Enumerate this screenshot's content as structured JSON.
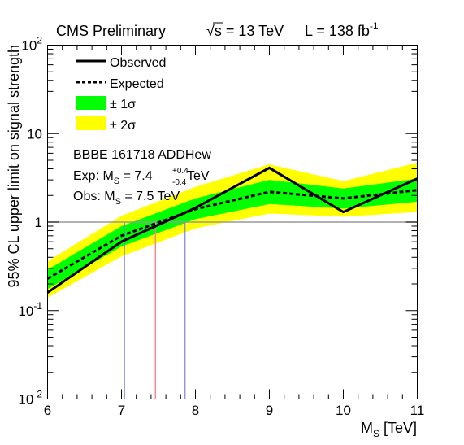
{
  "header": {
    "experiment": "CMS Preliminary",
    "energy_sqrt": "s",
    "energy_rest": " = 13 TeV",
    "lumi_prefix": "L = 138 fb",
    "lumi_exp": "-1"
  },
  "annotations": {
    "model": "BBBE  161718  ADDHew",
    "exp_prefix": "Exp: M",
    "exp_sub": "S",
    "exp_value": " = 7.4",
    "exp_up": "+0.4",
    "exp_down": "-0.4",
    "exp_unit": " TeV",
    "obs_prefix": "Obs: M",
    "obs_sub": "S",
    "obs_value": " = 7.5 TeV"
  },
  "colors": {
    "observed": "#000000",
    "expected": "#000000",
    "band1": "#00ff00",
    "band2": "#ffff00",
    "reference": "#999999",
    "crossing_expected": "#7f7fdf",
    "crossing_observed": "#ff7f7f"
  },
  "chart_data": {
    "type": "line",
    "title": "",
    "xlabel_main": "M",
    "xlabel_sub": "S",
    "xlabel_unit": " [TeV]",
    "ylabel": "95% CL upper limit on signal strength",
    "xlim": [
      6,
      11
    ],
    "ylim": [
      0.01,
      100
    ],
    "yscale": "log",
    "x_ticks": [
      "6",
      "7",
      "8",
      "9",
      "10",
      "11"
    ],
    "y_ticks": [
      {
        "value": 0.01,
        "base": "10",
        "exp": "-2"
      },
      {
        "value": 0.1,
        "base": "10",
        "exp": "-1"
      },
      {
        "value": 1,
        "base": "1",
        "exp": ""
      },
      {
        "value": 10,
        "base": "10",
        "exp": ""
      },
      {
        "value": 100,
        "base": "10",
        "exp": "2"
      }
    ],
    "x": [
      6,
      7,
      8,
      9,
      10,
      11
    ],
    "series": [
      {
        "name": "Observed",
        "style": "solid",
        "values": [
          0.16,
          0.6,
          1.45,
          4.1,
          1.3,
          3.1
        ]
      },
      {
        "name": "Expected",
        "style": "dashed",
        "values": [
          0.23,
          0.7,
          1.4,
          2.2,
          1.85,
          2.3
        ]
      }
    ],
    "bands": [
      {
        "name": "± 2σ",
        "lower": [
          0.14,
          0.41,
          0.85,
          1.25,
          1.15,
          1.3
        ],
        "upper": [
          0.36,
          1.18,
          2.5,
          4.5,
          2.9,
          4.7
        ]
      },
      {
        "name": "± 1σ",
        "lower": [
          0.175,
          0.53,
          1.08,
          1.6,
          1.42,
          1.7
        ],
        "upper": [
          0.29,
          0.9,
          1.85,
          3.0,
          2.4,
          3.1
        ]
      }
    ],
    "reference_line": 1,
    "crossings": {
      "expected": 7.44,
      "expected_minus": 7.04,
      "expected_plus": 7.86,
      "observed": 7.46
    },
    "legend": {
      "placement": "top-left",
      "entries": [
        "Observed",
        "Expected",
        "± 1σ",
        "± 2σ"
      ]
    }
  }
}
